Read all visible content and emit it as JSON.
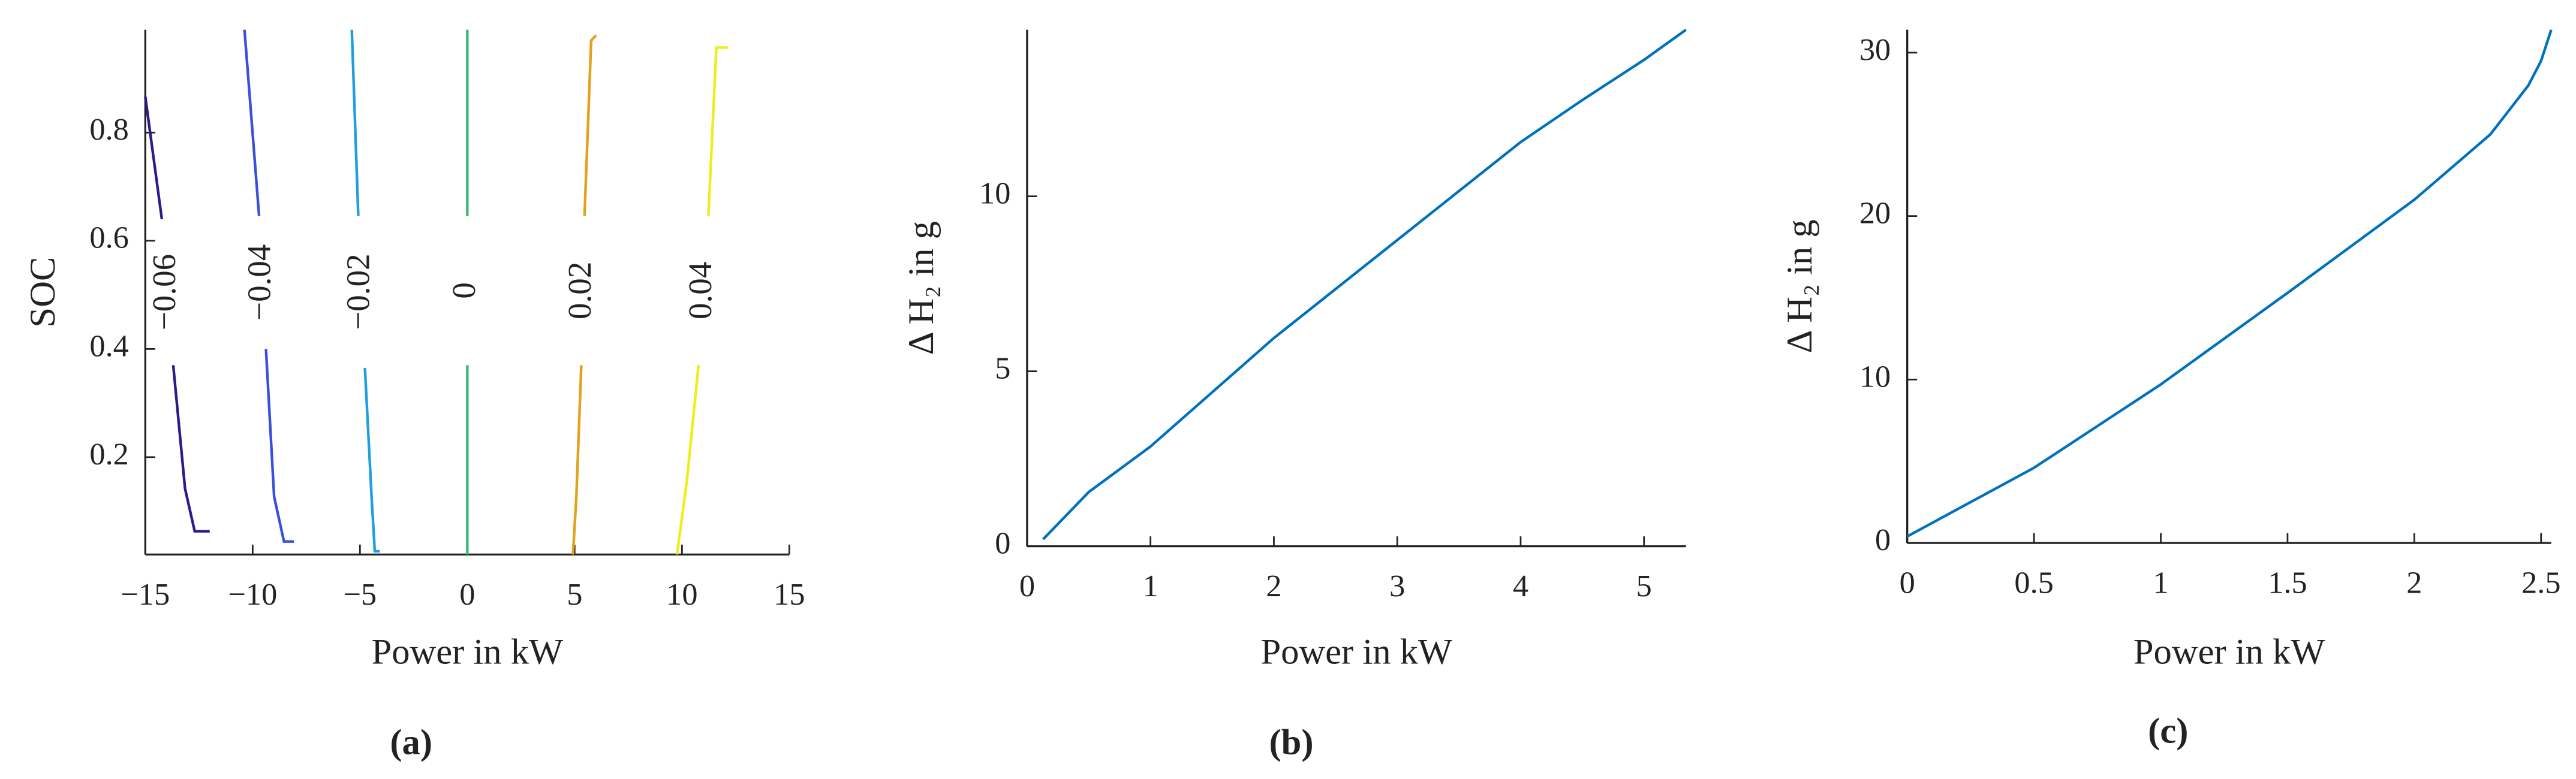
{
  "chart_data": [
    {
      "type": "contour",
      "caption": "(a)",
      "xlabel": "Power in kW",
      "ylabel": "SOC",
      "xlim": [
        -15,
        15
      ],
      "ylim": [
        0.02,
        0.99
      ],
      "xticks": [
        {
          "value": -15,
          "label": "−15"
        },
        {
          "value": -10,
          "label": "−10"
        },
        {
          "value": -5,
          "label": "−5"
        },
        0,
        5,
        10,
        15
      ],
      "yticks": [
        0.2,
        0.4,
        0.6,
        0.8
      ],
      "series": [
        {
          "level": {
            "value": -0.06,
            "label": "−0.06"
          },
          "color": "#2b1a8c",
          "x": [
            -15,
            -14.23,
            null,
            -13.7,
            -13.15,
            -12.7,
            -12.0
          ],
          "values": [
            0.866,
            0.64,
            null,
            0.37,
            0.142,
            0.063,
            0.063
          ]
        },
        {
          "level": {
            "value": -0.04,
            "label": "−0.04"
          },
          "color": "#3a4fe0",
          "x": [
            -10.38,
            -9.7,
            null,
            -9.38,
            -9.0,
            -8.54,
            -8.08
          ],
          "values": [
            0.99,
            0.646,
            null,
            0.4,
            0.127,
            0.044,
            0.044
          ]
        },
        {
          "level": {
            "value": -0.02,
            "label": "−0.02"
          },
          "color": "#1f9fdf",
          "x": [
            -5.38,
            -5.08,
            null,
            -4.77,
            -4.46,
            -4.31,
            -4.08
          ],
          "values": [
            0.99,
            0.646,
            null,
            0.365,
            0.127,
            0.026,
            0.026
          ]
        },
        {
          "level": {
            "value": 0,
            "label": "0"
          },
          "color": "#3cb878",
          "x": [
            0,
            0,
            null,
            0,
            0
          ],
          "values": [
            0.99,
            0.646,
            null,
            0.37,
            0.02
          ]
        },
        {
          "level": {
            "value": 0.02,
            "label": "0.02"
          },
          "color": "#e3a21a",
          "x": [
            6.0,
            5.77,
            5.46,
            null,
            5.31,
            5.08,
            4.92
          ],
          "values": [
            0.98,
            0.97,
            0.646,
            null,
            0.37,
            0.127,
            0.02
          ]
        },
        {
          "level": {
            "value": 0.04,
            "label": "0.04"
          },
          "color": "#eeee1c",
          "x": [
            12.15,
            11.6,
            11.23,
            null,
            10.77,
            10.23,
            9.77
          ],
          "values": [
            0.957,
            0.957,
            0.646,
            null,
            0.37,
            0.157,
            0.02
          ]
        }
      ]
    },
    {
      "type": "line",
      "caption": "(b)",
      "xlabel": "Power in kW",
      "ylabel": "Δ H₂ in g",
      "xlim": [
        0,
        5.34
      ],
      "ylim": [
        0,
        14.76
      ],
      "xticks": [
        0,
        1,
        2,
        3,
        4,
        5
      ],
      "yticks": [
        0,
        5,
        10
      ],
      "series": [
        {
          "color": "#0072bd",
          "x": [
            0.13,
            0.5,
            1,
            1.5,
            2,
            2.5,
            3,
            3.5,
            4,
            4.5,
            5,
            5.34
          ],
          "values": [
            0.2,
            1.55,
            2.85,
            4.4,
            5.95,
            7.35,
            8.75,
            10.15,
            11.55,
            12.75,
            13.9,
            14.76
          ]
        }
      ]
    },
    {
      "type": "line",
      "caption": "(c)",
      "xlabel": "Power in kW",
      "ylabel": "Δ H₂ in g",
      "xlim": [
        0,
        2.54
      ],
      "ylim": [
        0,
        31.4
      ],
      "xticks": [
        0,
        0.5,
        1,
        1.5,
        2,
        2.5
      ],
      "yticks": [
        0,
        10,
        20,
        30
      ],
      "series": [
        {
          "color": "#0072bd",
          "x": [
            0,
            0.5,
            1,
            1.5,
            2,
            2.3,
            2.45,
            2.5,
            2.54
          ],
          "values": [
            0.4,
            4.6,
            9.7,
            15.3,
            21,
            25,
            28,
            29.5,
            31.4
          ]
        }
      ]
    }
  ]
}
